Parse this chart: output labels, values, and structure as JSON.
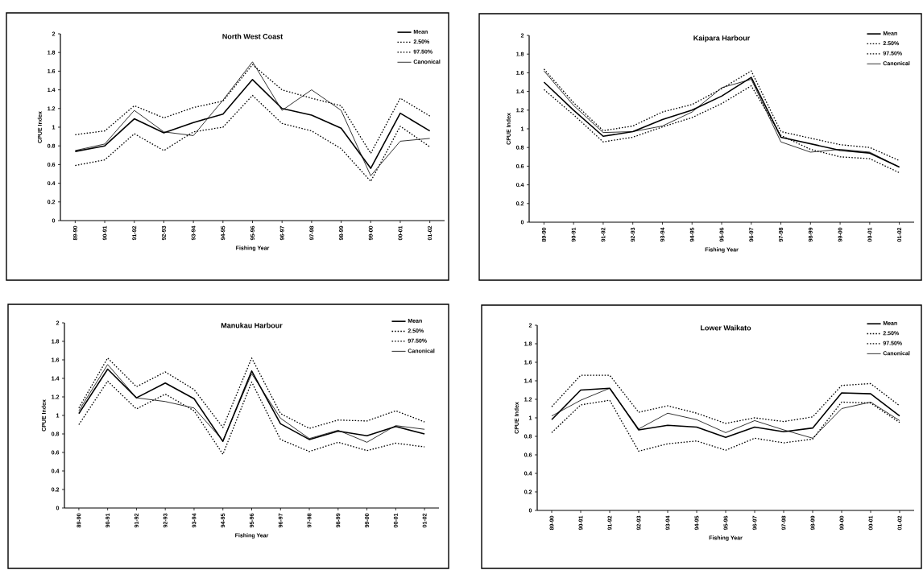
{
  "chart_data": [
    {
      "type": "line",
      "title": "North West Coast",
      "xlabel": "Fishing Year",
      "ylabel": "CPUE Index",
      "categories": [
        "89-90",
        "90-91",
        "91-92",
        "92-93",
        "93-94",
        "94-95",
        "95-96",
        "96-97",
        "97-98",
        "98-99",
        "99-00",
        "00-01",
        "01-02"
      ],
      "ylim": [
        0,
        2
      ],
      "yticks": [
        0,
        0.2,
        0.4,
        0.6,
        0.8,
        1,
        1.2,
        1.4,
        1.6,
        1.8,
        2
      ],
      "legend": "top right",
      "grid": false,
      "marker": "none",
      "series": [
        {
          "name": "Mean",
          "color": "#000000",
          "line_style": "solid",
          "values": [
            0.74,
            0.8,
            1.09,
            0.94,
            1.05,
            1.14,
            1.51,
            1.2,
            1.13,
            0.99,
            0.56,
            1.15,
            0.96
          ]
        },
        {
          "name": "2.50%",
          "color": "#000000",
          "line_style": "dotted",
          "values": [
            0.59,
            0.65,
            0.93,
            0.75,
            0.95,
            1.0,
            1.34,
            1.04,
            0.96,
            0.77,
            0.42,
            1.01,
            0.79
          ]
        },
        {
          "name": "97.50%",
          "color": "#000000",
          "line_style": "dotted",
          "values": [
            0.92,
            0.96,
            1.23,
            1.1,
            1.21,
            1.28,
            1.67,
            1.4,
            1.31,
            1.23,
            0.72,
            1.31,
            1.12
          ]
        },
        {
          "name": "Canonical",
          "color": "#000000",
          "line_style": "solid",
          "values": [
            0.75,
            0.82,
            1.18,
            0.95,
            0.91,
            1.29,
            1.7,
            1.18,
            1.4,
            1.18,
            0.48,
            0.85,
            0.88
          ]
        }
      ]
    },
    {
      "type": "line",
      "title": "Kaipara Harbour",
      "xlabel": "Fishing Year",
      "ylabel": "CPUE Index",
      "categories": [
        "89-90",
        "90-91",
        "91-92",
        "92-93",
        "93-94",
        "94-95",
        "95-96",
        "96-97",
        "97-98",
        "98-99",
        "99-00",
        "00-01",
        "01-02"
      ],
      "ylim": [
        0,
        2
      ],
      "yticks": [
        0,
        0.2,
        0.4,
        0.6,
        0.8,
        1,
        1.2,
        1.4,
        1.6,
        1.8,
        2
      ],
      "legend": "top right",
      "grid": false,
      "marker": "none",
      "series": [
        {
          "name": "Mean",
          "color": "#000000",
          "line_style": "solid",
          "values": [
            1.5,
            1.2,
            0.92,
            0.97,
            1.1,
            1.2,
            1.35,
            1.55,
            0.91,
            0.84,
            0.77,
            0.74,
            0.59
          ]
        },
        {
          "name": "2.50%",
          "color": "#000000",
          "line_style": "dotted",
          "values": [
            1.42,
            1.15,
            0.86,
            0.91,
            1.02,
            1.12,
            1.27,
            1.46,
            0.93,
            0.78,
            0.7,
            0.68,
            0.53
          ]
        },
        {
          "name": "97.50%",
          "color": "#000000",
          "line_style": "dotted",
          "values": [
            1.64,
            1.28,
            0.98,
            1.03,
            1.18,
            1.26,
            1.43,
            1.62,
            0.97,
            0.9,
            0.83,
            0.8,
            0.66
          ]
        },
        {
          "name": "Canonical",
          "color": "#000000",
          "line_style": "solid",
          "values": [
            1.62,
            1.25,
            0.96,
            0.97,
            1.03,
            1.18,
            1.44,
            1.53,
            0.86,
            0.75,
            0.78,
            0.75,
            0.59
          ]
        }
      ]
    },
    {
      "type": "line",
      "title": "Manukau Harbour",
      "xlabel": "Fishing Year",
      "ylabel": "CPUE Index",
      "categories": [
        "89-90",
        "90-91",
        "91-92",
        "92-93",
        "93-94",
        "94-95",
        "95-96",
        "96-97",
        "97-98",
        "98-99",
        "99-00",
        "00-01",
        "01-02"
      ],
      "ylim": [
        0,
        2
      ],
      "yticks": [
        0,
        0.2,
        0.4,
        0.6,
        0.8,
        1,
        1.2,
        1.4,
        1.6,
        1.8,
        2
      ],
      "legend": "top right",
      "grid": false,
      "marker": "none",
      "series": [
        {
          "name": "Mean",
          "color": "#000000",
          "line_style": "solid",
          "values": [
            1.02,
            1.5,
            1.19,
            1.35,
            1.18,
            0.72,
            1.48,
            0.91,
            0.74,
            0.83,
            0.78,
            0.88,
            0.8
          ]
        },
        {
          "name": "2.50%",
          "color": "#000000",
          "line_style": "dotted",
          "values": [
            0.9,
            1.37,
            1.07,
            1.23,
            1.05,
            0.58,
            1.36,
            0.74,
            0.61,
            0.71,
            0.62,
            0.7,
            0.66
          ]
        },
        {
          "name": "97.50%",
          "color": "#000000",
          "line_style": "dotted",
          "values": [
            1.08,
            1.62,
            1.31,
            1.47,
            1.28,
            0.87,
            1.62,
            1.02,
            0.86,
            0.95,
            0.94,
            1.05,
            0.93
          ]
        },
        {
          "name": "Canonical",
          "color": "#000000",
          "line_style": "solid",
          "values": [
            1.05,
            1.55,
            1.19,
            1.15,
            1.08,
            0.73,
            1.45,
            0.97,
            0.75,
            0.84,
            0.71,
            0.89,
            0.85
          ]
        }
      ]
    },
    {
      "type": "line",
      "title": "Lower Waikato",
      "xlabel": "Fishing Year",
      "ylabel": "CPUE Index",
      "categories": [
        "89-90",
        "90-91",
        "91-92",
        "92-93",
        "93-94",
        "94-95",
        "95-96",
        "96-97",
        "97-98",
        "98-99",
        "99-00",
        "00-01",
        "01-02"
      ],
      "ylim": [
        0,
        2
      ],
      "yticks": [
        0,
        0.2,
        0.4,
        0.6,
        0.8,
        1,
        1.2,
        1.4,
        1.6,
        1.8,
        2
      ],
      "legend": "top right",
      "grid": false,
      "marker": "none",
      "series": [
        {
          "name": "Mean",
          "color": "#000000",
          "line_style": "solid",
          "values": [
            0.98,
            1.3,
            1.32,
            0.87,
            0.92,
            0.9,
            0.79,
            0.9,
            0.85,
            0.89,
            1.27,
            1.26,
            1.02
          ]
        },
        {
          "name": "2.50%",
          "color": "#000000",
          "line_style": "dotted",
          "values": [
            0.84,
            1.14,
            1.19,
            0.64,
            0.72,
            0.75,
            0.65,
            0.78,
            0.73,
            0.77,
            1.17,
            1.16,
            0.95
          ]
        },
        {
          "name": "97.50%",
          "color": "#000000",
          "line_style": "dotted",
          "values": [
            1.12,
            1.46,
            1.46,
            1.06,
            1.13,
            1.05,
            0.94,
            1.0,
            0.96,
            1.01,
            1.35,
            1.37,
            1.13
          ]
        },
        {
          "name": "Canonical",
          "color": "#000000",
          "line_style": "solid",
          "values": [
            1.02,
            1.19,
            1.32,
            0.88,
            1.05,
            0.98,
            0.84,
            0.97,
            0.87,
            0.78,
            1.1,
            1.17,
            0.97
          ]
        }
      ]
    }
  ]
}
